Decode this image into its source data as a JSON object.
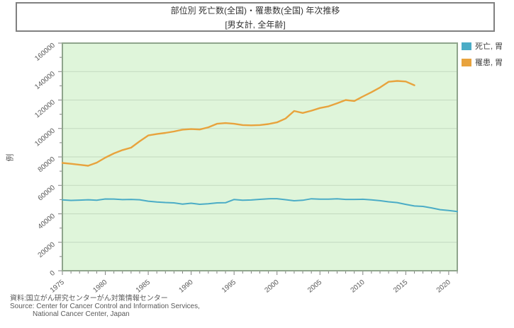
{
  "title": {
    "line1": "部位別 死亡数(全国)・罹患数(全国) 年次推移",
    "line2": "[男女計, 全年齢]"
  },
  "legend": {
    "items": [
      {
        "label": "死亡, 胃",
        "color": "#4BACC6"
      },
      {
        "label": "罹患, 胃",
        "color": "#E8A33D"
      }
    ]
  },
  "footer": {
    "line1": "資料:国立がん研究センターがん対策情報センター",
    "line2": "Source: Center for Cancer Control and Information Services,",
    "line3": "National Cancer Center, Japan"
  },
  "chart_data": {
    "type": "line",
    "title": "部位別 死亡数(全国)・罹患数(全国) 年次推移 [男女計, 全年齢]",
    "xlabel": "",
    "ylabel": "例",
    "ylim": [
      0,
      160000
    ],
    "ytick_step": 20000,
    "ytick_minor_step": 10000,
    "x_range": [
      1975,
      2021
    ],
    "xticks_labeled": [
      1975,
      1980,
      1985,
      1990,
      1995,
      2000,
      2005,
      2010,
      2015,
      2020
    ],
    "grid": "horizontal",
    "legend_position": "top-right-outside",
    "plot_bg_color": "#DFF5DA",
    "grid_color": "#C3D9BF",
    "border_color": "#8FA58C",
    "tick_color": "#808080",
    "tick_label_color": "#595959",
    "series": [
      {
        "name": "死亡, 胃",
        "color": "#4BACC6",
        "x_start": 1975,
        "values": [
          49857,
          49460,
          49632,
          49892,
          49527,
          50443,
          50379,
          49997,
          50130,
          49882,
          48902,
          48362,
          47939,
          47702,
          46841,
          47471,
          46713,
          47127,
          47725,
          47783,
          50076,
          49582,
          49741,
          50180,
          50583,
          50650,
          49922,
          49213,
          49535,
          50562,
          50311,
          50330,
          50558,
          50156,
          50136,
          50219,
          49830,
          49262,
          48427,
          47903,
          46659,
          45509,
          45226,
          44192,
          42931,
          42319,
          41624
        ]
      },
      {
        "name": "罹患, 胃",
        "color": "#E8A33D",
        "x_start": 1975,
        "values": [
          75800,
          75200,
          74500,
          73800,
          76000,
          79500,
          82500,
          84800,
          86500,
          91000,
          95100,
          96100,
          96900,
          97900,
          99200,
          99600,
          99300,
          100800,
          103300,
          103800,
          103300,
          102400,
          102200,
          102400,
          103100,
          104300,
          107000,
          112300,
          110900,
          112500,
          114400,
          115600,
          117700,
          120000,
          119300,
          122500,
          125500,
          128800,
          132800,
          133400,
          133000,
          130400
        ]
      }
    ]
  }
}
